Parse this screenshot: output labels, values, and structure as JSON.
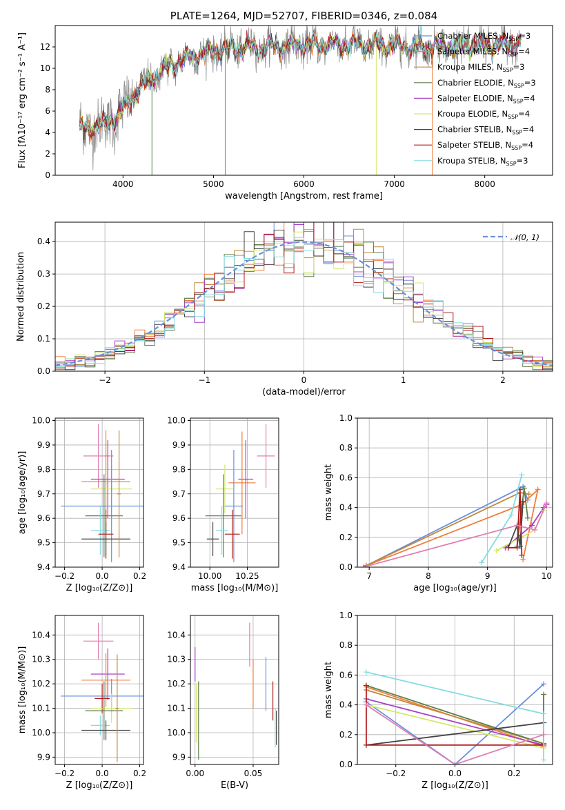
{
  "colors": {
    "Chabrier MILES": "#6a8fdc",
    "Salpeter MILES": "#ee7d3a",
    "Kroupa MILES": "#c2873a",
    "Chabrier ELODIE": "#5f7f4d",
    "Salpeter ELODIE": "#a640c8",
    "Kroupa ELODIE": "#d3e86c",
    "Chabrier STELIB": "#444444",
    "Salpeter STELIB": "#b01a1a",
    "Kroupa STELIB": "#86dbe0",
    "extra_pink": "#e07fb0",
    "data": "#808080"
  },
  "chart_data": [
    {
      "id": "spectrum",
      "type": "line",
      "title": "PLATE=1264, MJD=52707, FIBERID=0346, z=0.084",
      "xlabel": "wavelength [Angstrom, rest frame]",
      "ylabel": "Flux [fλ10⁻¹⁷ erg cm⁻² s⁻¹ A⁻¹]",
      "xlim": [
        3250,
        8750
      ],
      "ylim": [
        0,
        14
      ],
      "xticks": [
        4000,
        5000,
        6000,
        7000,
        8000
      ],
      "yticks": [
        0,
        2,
        4,
        6,
        8,
        10,
        12
      ],
      "grid": false,
      "legend_position": "upper-right",
      "continuum": {
        "x": [
          3520,
          3700,
          3900,
          4000,
          4200,
          4400,
          4600,
          4800,
          5000,
          5300,
          5600,
          6000,
          6500,
          7000,
          7400,
          7800,
          8200,
          8400
        ],
        "y": [
          4.2,
          4.6,
          5.2,
          6.2,
          8.3,
          9.6,
          10.6,
          11.2,
          11.6,
          11.9,
          12.0,
          12.2,
          12.2,
          12.1,
          12.0,
          12.1,
          12.2,
          12.3
        ]
      },
      "data_noise": 0.8,
      "model_noise": 0.35,
      "legend": [
        {
          "label": "Chabrier MILES, N",
          "sub": "SSP",
          "n": "=3"
        },
        {
          "label": "Salpeter MILES, N",
          "sub": "SSP",
          "n": "=4"
        },
        {
          "label": "Kroupa MILES, N",
          "sub": "SSP",
          "n": "=3"
        },
        {
          "label": "Chabrier ELODIE, N",
          "sub": "SSP",
          "n": "=3"
        },
        {
          "label": "Salpeter ELODIE, N",
          "sub": "SSP",
          "n": "=4"
        },
        {
          "label": "Kroupa ELODIE, N",
          "sub": "SSP",
          "n": "=4"
        },
        {
          "label": "Chabrier STELIB, N",
          "sub": "SSP",
          "n": "=4"
        },
        {
          "label": "Salpeter STELIB, N",
          "sub": "SSP",
          "n": "=4"
        },
        {
          "label": "Kroupa STELIB, N",
          "sub": "SSP",
          "n": "=3"
        }
      ]
    },
    {
      "id": "residuals",
      "type": "histogram",
      "xlabel": "(data-model)/error",
      "ylabel": "Normed distribution",
      "xlim": [
        -2.5,
        2.5
      ],
      "ylim": [
        0,
        0.46
      ],
      "xticks": [
        -2,
        -1,
        0,
        1,
        2
      ],
      "yticks": [
        0.0,
        0.1,
        0.2,
        0.3,
        0.4
      ],
      "grid": true,
      "bin_width": 0.1,
      "legend": "𝒩(0, 1)",
      "legend_position": "upper-right"
    },
    {
      "id": "age_vs_Z",
      "type": "errorbar",
      "xlabel": "Z [log₁₀(Z/Z⊙)]",
      "ylabel": "age  [log₁₀(age/yr)]",
      "xlim": [
        -0.25,
        0.22
      ],
      "ylim": [
        9.4,
        10.01
      ],
      "xticks": [
        -0.2,
        0.0,
        0.2
      ],
      "yticks": [
        9.4,
        9.5,
        9.6,
        9.7,
        9.8,
        9.9,
        10.0
      ],
      "grid": true,
      "points": [
        {
          "series": "extra_pink",
          "x": -0.02,
          "y": 9.855,
          "xerr": 0.08,
          "yerr": 0.13
        },
        {
          "series": "Salpeter ELODIE",
          "x": 0.03,
          "y": 9.76,
          "xerr": 0.09,
          "yerr": 0.16
        },
        {
          "series": "Salpeter MILES",
          "x": 0.02,
          "y": 9.75,
          "xerr": 0.13,
          "yerr": 0.21
        },
        {
          "series": "Kroupa ELODIE",
          "x": 0.05,
          "y": 9.72,
          "xerr": 0.11,
          "yerr": 0.1
        },
        {
          "series": "Chabrier MILES",
          "x": 0.05,
          "y": 9.65,
          "xerr": 0.27,
          "yerr": 0.23
        },
        {
          "series": "Chabrier ELODIE",
          "x": 0.01,
          "y": 9.61,
          "xerr": 0.1,
          "yerr": 0.17
        },
        {
          "series": "Kroupa STELIB",
          "x": -0.01,
          "y": 9.55,
          "xerr": 0.05,
          "yerr": 0.1
        },
        {
          "series": "Salpeter STELIB",
          "x": 0.02,
          "y": 9.535,
          "xerr": 0.04,
          "yerr": 0.1
        },
        {
          "series": "Chabrier STELIB",
          "x": 0.02,
          "y": 9.515,
          "xerr": 0.13,
          "yerr": 0.07
        },
        {
          "series": "Kroupa MILES",
          "x": 0.09,
          "y": 9.7,
          "xerr": 0.01,
          "yerr": 0.26
        }
      ]
    },
    {
      "id": "age_vs_mass",
      "type": "errorbar",
      "xlabel": "mass [log₁₀(M/M⊙)]",
      "ylabel": "",
      "xlim": [
        9.87,
        10.46
      ],
      "ylim": [
        9.4,
        10.01
      ],
      "xticks": [
        10.0,
        10.25
      ],
      "yticks": [
        9.4,
        9.5,
        9.6,
        9.7,
        9.8,
        9.9,
        10.0
      ],
      "grid": true,
      "points": [
        {
          "series": "extra_pink",
          "x": 10.375,
          "y": 9.855,
          "xerr": 0.06,
          "yerr": 0.13
        },
        {
          "series": "Salpeter ELODIE",
          "x": 10.24,
          "y": 9.76,
          "xerr": 0.05,
          "yerr": 0.16
        },
        {
          "series": "Salpeter MILES",
          "x": 10.215,
          "y": 9.745,
          "xerr": 0.09,
          "yerr": 0.21
        },
        {
          "series": "Kroupa ELODIE",
          "x": 10.1,
          "y": 9.72,
          "xerr": 0.06,
          "yerr": 0.1
        },
        {
          "series": "Chabrier MILES",
          "x": 10.16,
          "y": 9.65,
          "xerr": 0.06,
          "yerr": 0.23
        },
        {
          "series": "Chabrier ELODIE",
          "x": 10.09,
          "y": 9.61,
          "xerr": 0.12,
          "yerr": 0.17
        },
        {
          "series": "Kroupa STELIB",
          "x": 10.08,
          "y": 9.55,
          "xerr": 0.04,
          "yerr": 0.1
        },
        {
          "series": "Salpeter STELIB",
          "x": 10.15,
          "y": 9.535,
          "xerr": 0.05,
          "yerr": 0.1
        },
        {
          "series": "Chabrier STELIB",
          "x": 10.02,
          "y": 9.515,
          "xerr": 0.04,
          "yerr": 0.07
        }
      ]
    },
    {
      "id": "weight_vs_age",
      "type": "line",
      "xlabel": "age  [log₁₀(age/yr)]",
      "ylabel": "mass weight",
      "xlim": [
        6.8,
        10.1
      ],
      "ylim": [
        0,
        1.0
      ],
      "xticks": [
        7,
        8,
        9,
        10
      ],
      "yticks": [
        0.0,
        0.2,
        0.4,
        0.6,
        0.8,
        1.0
      ],
      "grid": true,
      "series": [
        {
          "name": "Chabrier MILES",
          "x": [
            6.95,
            9.6,
            9.68
          ],
          "y": [
            0.01,
            0.54,
            0.45
          ]
        },
        {
          "name": "Salpeter MILES",
          "x": [
            6.95,
            9.58,
            9.85,
            9.6
          ],
          "y": [
            0.01,
            0.42,
            0.52,
            0.05
          ]
        },
        {
          "name": "Kroupa MILES",
          "x": [
            6.95,
            9.55,
            9.7
          ],
          "y": [
            0.01,
            0.5,
            0.49
          ]
        },
        {
          "name": "Chabrier ELODIE",
          "x": [
            9.5,
            9.62,
            9.68
          ],
          "y": [
            0.14,
            0.53,
            0.33
          ]
        },
        {
          "name": "Salpeter ELODIE",
          "x": [
            9.3,
            9.75,
            9.95,
            10.0
          ],
          "y": [
            0.13,
            0.28,
            0.4,
            0.42
          ]
        },
        {
          "name": "Kroupa ELODIE",
          "x": [
            9.15,
            9.8,
            9.95
          ],
          "y": [
            0.11,
            0.25,
            0.38
          ]
        },
        {
          "name": "Chabrier STELIB",
          "x": [
            9.35,
            9.5,
            9.55,
            9.6
          ],
          "y": [
            0.13,
            0.28,
            0.14,
            0.44
          ]
        },
        {
          "name": "Salpeter STELIB",
          "x": [
            9.35,
            9.5,
            9.55,
            9.58
          ],
          "y": [
            0.13,
            0.13,
            0.52,
            0.08
          ]
        },
        {
          "name": "Kroupa STELIB",
          "x": [
            8.9,
            9.4,
            9.58
          ],
          "y": [
            0.03,
            0.35,
            0.62
          ]
        },
        {
          "name": "extra_pink",
          "x": [
            6.9,
            9.5,
            9.8,
            10.0
          ],
          "y": [
            0.0,
            0.28,
            0.25,
            0.43
          ]
        }
      ]
    },
    {
      "id": "mass_vs_Z",
      "type": "errorbar",
      "xlabel": "Z [log₁₀(Z/Z⊙)]",
      "ylabel": "mass [log₁₀(M/M⊙)]",
      "xlim": [
        -0.25,
        0.22
      ],
      "ylim": [
        9.87,
        10.48
      ],
      "xticks": [
        -0.2,
        0.0,
        0.2
      ],
      "yticks": [
        9.9,
        10.0,
        10.1,
        10.2,
        10.3,
        10.4
      ],
      "grid": true,
      "points": [
        {
          "series": "extra_pink",
          "x": -0.02,
          "y": 10.375,
          "xerr": 0.08,
          "yerr": 0.075
        },
        {
          "series": "Salpeter ELODIE",
          "x": 0.03,
          "y": 10.24,
          "xerr": 0.09,
          "yerr": 0.105
        },
        {
          "series": "Salpeter MILES",
          "x": 0.02,
          "y": 10.215,
          "xerr": 0.13,
          "yerr": 0.11
        },
        {
          "series": "Chabrier MILES",
          "x": 0.05,
          "y": 10.15,
          "xerr": 0.27,
          "yerr": 0.07
        },
        {
          "series": "Salpeter STELIB",
          "x": 0.0,
          "y": 10.14,
          "xerr": 0.04,
          "yerr": 0.06
        },
        {
          "series": "Kroupa ELODIE",
          "x": 0.05,
          "y": 10.1,
          "xerr": 0.11,
          "yerr": 0.06
        },
        {
          "series": "Chabrier ELODIE",
          "x": 0.01,
          "y": 10.09,
          "xerr": 0.1,
          "yerr": 0.12
        },
        {
          "series": "Kroupa STELIB",
          "x": -0.01,
          "y": 10.03,
          "xerr": 0.05,
          "yerr": 0.04
        },
        {
          "series": "Chabrier STELIB",
          "x": 0.02,
          "y": 10.01,
          "xerr": 0.13,
          "yerr": 0.04
        },
        {
          "series": "Kroupa MILES",
          "x": 0.08,
          "y": 10.1,
          "xerr": 0.01,
          "yerr": 0.22
        }
      ]
    },
    {
      "id": "ebv",
      "type": "errorbar",
      "xlabel": "E(B-V)",
      "ylabel": "",
      "xlim": [
        -0.004,
        0.072
      ],
      "ylim": [
        9.87,
        10.48
      ],
      "xticks": [
        0.0,
        0.05
      ],
      "yticks": [
        9.9,
        10.0,
        10.1,
        10.2,
        10.3,
        10.4
      ],
      "grid": true,
      "points": [
        {
          "series": "extra_pink",
          "x": 0.047,
          "y": 10.36,
          "xerr": 0,
          "yerr": 0.09
        },
        {
          "series": "Salpeter ELODIE",
          "x": 0.0,
          "y": 10.28,
          "xerr": 0,
          "yerr": 0.07
        },
        {
          "series": "Salpeter MILES",
          "x": 0.05,
          "y": 10.2,
          "xerr": 0,
          "yerr": 0.1
        },
        {
          "series": "Chabrier MILES",
          "x": 0.061,
          "y": 10.2,
          "xerr": 0,
          "yerr": 0.11
        },
        {
          "series": "Salpeter STELIB",
          "x": 0.067,
          "y": 10.13,
          "xerr": 0,
          "yerr": 0.08
        },
        {
          "series": "Kroupa ELODIE",
          "x": 0.001,
          "y": 10.08,
          "xerr": 0,
          "yerr": 0.12
        },
        {
          "series": "Chabrier ELODIE",
          "x": 0.003,
          "y": 10.05,
          "xerr": 0,
          "yerr": 0.16
        },
        {
          "series": "Kroupa STELIB",
          "x": 0.069,
          "y": 10.02,
          "xerr": 0,
          "yerr": 0.08
        },
        {
          "series": "Chabrier STELIB",
          "x": 0.07,
          "y": 10.02,
          "xerr": 0,
          "yerr": 0.07
        }
      ]
    },
    {
      "id": "weight_vs_Z",
      "type": "line",
      "xlabel": "Z [log₁₀(Z/Z⊙)]",
      "ylabel": "mass weight",
      "xlim": [
        -0.33,
        0.33
      ],
      "ylim": [
        0,
        1.0
      ],
      "xticks": [
        -0.2,
        0.0,
        0.2
      ],
      "yticks": [
        0.0,
        0.2,
        0.4,
        0.6,
        0.8,
        1.0
      ],
      "grid": true,
      "series": [
        {
          "name": "Chabrier MILES",
          "x": [
            -0.3,
            0.0,
            0.3
          ],
          "y": [
            0.42,
            0.0,
            0.54
          ]
        },
        {
          "name": "Salpeter MILES",
          "x": [
            -0.3,
            0.3,
            0.3
          ],
          "y": [
            0.52,
            0.12,
            0.47
          ]
        },
        {
          "name": "Kroupa MILES",
          "x": [
            -0.3,
            0.3
          ],
          "y": [
            0.5,
            0.14
          ]
        },
        {
          "name": "Chabrier ELODIE",
          "x": [
            -0.3,
            0.3,
            0.3
          ],
          "y": [
            0.53,
            0.14,
            0.47
          ]
        },
        {
          "name": "Salpeter ELODIE",
          "x": [
            -0.3,
            0.3
          ],
          "y": [
            0.44,
            0.13
          ]
        },
        {
          "name": "Kroupa ELODIE",
          "x": [
            -0.3,
            0.3
          ],
          "y": [
            0.4,
            0.11
          ]
        },
        {
          "name": "Chabrier STELIB",
          "x": [
            -0.3,
            0.3
          ],
          "y": [
            0.13,
            0.28
          ]
        },
        {
          "name": "Salpeter STELIB",
          "x": [
            -0.3,
            -0.3,
            0.3
          ],
          "y": [
            0.53,
            0.13,
            0.13
          ]
        },
        {
          "name": "Kroupa STELIB",
          "x": [
            -0.3,
            0.3,
            0.3
          ],
          "y": [
            0.62,
            0.34,
            0.03
          ]
        },
        {
          "name": "extra_pink",
          "x": [
            -0.3,
            0.0,
            0.3
          ],
          "y": [
            0.4,
            0.0,
            0.2
          ]
        }
      ]
    }
  ]
}
